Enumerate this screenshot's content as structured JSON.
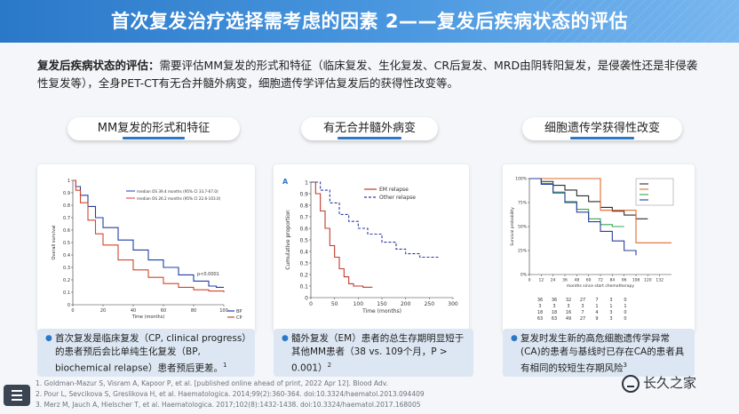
{
  "slide": {
    "title": "首次复发治疗选择需考虑的因素 2——复发后疾病状态的评估",
    "intro_bold": "复发后疾病状态的评估：",
    "intro_text": "需要评估MM复发的形式和特征（临床复发、生化复发、CR后复发、MRD由阴转阳复发，是侵袭性还是非侵袭性复发等），全身PET-CT有无合并髓外病变，细胞遗传学评估复发后的获得性改变等。"
  },
  "sections": [
    {
      "label": "MM复发的形式和特征"
    },
    {
      "label": "有无合并髓外病变"
    },
    {
      "label": "细胞遗传学获得性改变"
    }
  ],
  "notes": [
    {
      "text": "首次复发是临床复发（CP, clinical progress）的患者预后会比单纯生化复发（BP, biochemical relapse）患者预后更差。",
      "sup": "1"
    },
    {
      "text": "髓外复发（EM）患者的总生存期明显短于其他MM患者（38 vs. 109个月，P > 0.001）",
      "sup": "2"
    },
    {
      "text": "复发时发生新的高危细胞遗传学异常(CA)的患者与基线时已存在CA的患者具有相同的较短生存期风险",
      "sup": "3"
    }
  ],
  "refs": [
    "1.   Goldman-Mazur S, Visram A, Kapoor P, et al. [published online ahead of print, 2022 Apr 12]. Blood Adv.",
    "2.   Pour L, Sevcikova S, Greslikova H, et al. Haematologica. 2014;99(2):360-364. doi:10.3324/haematol.2013.094409",
    "3.   Merz M, Jauch A, Hielscher T, et al. Haematologica. 2017;102(8):1432-1438. doi:10.3324/haematol.2017.168005"
  ],
  "watermark": "长久之家",
  "chart_data": [
    {
      "type": "line",
      "title": "",
      "xlabel": "Time (months)",
      "ylabel": "Overall survival",
      "xlim": [
        0,
        100
      ],
      "ylim": [
        0,
        1
      ],
      "x_ticks": [
        0,
        20,
        40,
        60,
        80,
        100
      ],
      "y_ticks": [
        0,
        0.1,
        0.2,
        0.3,
        0.4,
        0.5,
        0.6,
        0.7,
        0.8,
        0.9,
        1.0
      ],
      "legend": [
        "BP",
        "CP"
      ],
      "annotations": [
        "median OS 39.4 months (95% CI 33.7-67.0)",
        "median OS 26.2 months (95% CI 22.6-103.0)",
        "p<0.0001"
      ],
      "series": [
        {
          "name": "BP",
          "color": "#1f3fa6",
          "x": [
            0,
            2,
            5,
            10,
            15,
            20,
            30,
            40,
            50,
            60,
            70,
            80,
            90,
            95,
            100
          ],
          "y": [
            1.0,
            0.95,
            0.88,
            0.79,
            0.7,
            0.62,
            0.52,
            0.44,
            0.36,
            0.3,
            0.24,
            0.19,
            0.15,
            0.14,
            0.14
          ]
        },
        {
          "name": "CP",
          "color": "#d0462a",
          "x": [
            0,
            2,
            5,
            10,
            15,
            20,
            30,
            40,
            50,
            60,
            70,
            80,
            90,
            95,
            100
          ],
          "y": [
            1.0,
            0.92,
            0.82,
            0.68,
            0.57,
            0.48,
            0.36,
            0.28,
            0.22,
            0.17,
            0.14,
            0.12,
            0.11,
            0.11,
            0.1
          ]
        }
      ]
    },
    {
      "type": "line",
      "panel_label": "A",
      "xlabel": "Time (months)",
      "ylabel": "Cumulative proportion",
      "xlim": [
        0,
        300
      ],
      "ylim": [
        0,
        1
      ],
      "x_ticks": [
        0,
        50,
        100,
        150,
        200,
        250,
        300
      ],
      "y_ticks": [
        0.0,
        0.1,
        0.2,
        0.3,
        0.4,
        0.5,
        0.6,
        0.7,
        0.8,
        0.9,
        1.0
      ],
      "legend": [
        "EM relapse",
        "Other relapse"
      ],
      "series": [
        {
          "name": "EM relapse",
          "color": "#c0392b",
          "dash": false,
          "x": [
            0,
            10,
            20,
            30,
            40,
            50,
            60,
            70,
            80,
            90,
            110,
            130
          ],
          "y": [
            1.0,
            0.9,
            0.75,
            0.6,
            0.45,
            0.35,
            0.25,
            0.18,
            0.12,
            0.1,
            0.09,
            0.09
          ]
        },
        {
          "name": "Other relapse",
          "color": "#2b3c9e",
          "dash": true,
          "x": [
            0,
            20,
            40,
            60,
            80,
            100,
            120,
            150,
            180,
            200,
            230,
            270
          ],
          "y": [
            1.0,
            0.93,
            0.82,
            0.72,
            0.66,
            0.6,
            0.55,
            0.48,
            0.42,
            0.38,
            0.35,
            0.35
          ]
        }
      ]
    },
    {
      "type": "line",
      "xlabel": "months since start chemotherapy",
      "ylabel": "Survival probability",
      "xlim": [
        0,
        144
      ],
      "ylim": [
        0,
        100
      ],
      "x_ticks": [
        0,
        12,
        24,
        36,
        48,
        60,
        72,
        84,
        96,
        108,
        120,
        132
      ],
      "y_ticks": [
        0,
        25,
        50,
        75,
        100
      ],
      "y_tick_labels": [
        "0%",
        "25%",
        "50%",
        "75%",
        "100%"
      ],
      "at_risk": [
        [
          "36",
          "36",
          "32",
          "27",
          "7",
          "3",
          "0"
        ],
        [
          "3",
          "3",
          "3",
          "3",
          "1",
          "1",
          "1"
        ],
        [
          "18",
          "18",
          "16",
          "7",
          "4",
          "3",
          "0"
        ],
        [
          "63",
          "63",
          "49",
          "27",
          "9",
          "3",
          "0"
        ]
      ],
      "series": [
        {
          "color": "#2c2c2c",
          "x": [
            0,
            12,
            24,
            36,
            48,
            60,
            72,
            84,
            96,
            108,
            120
          ],
          "y": [
            100,
            97,
            93,
            88,
            82,
            76,
            70,
            66,
            62,
            58,
            58
          ]
        },
        {
          "color": "#e26a2c",
          "x": [
            0,
            24,
            48,
            72,
            96,
            108,
            144
          ],
          "y": [
            100,
            100,
            100,
            67,
            67,
            33,
            33
          ]
        },
        {
          "color": "#2fa84f",
          "x": [
            0,
            12,
            24,
            36,
            48,
            60,
            72,
            84,
            96
          ],
          "y": [
            100,
            95,
            86,
            76,
            68,
            58,
            52,
            50,
            50
          ]
        },
        {
          "color": "#2b3c9e",
          "x": [
            0,
            12,
            24,
            36,
            48,
            60,
            72,
            84,
            96,
            108
          ],
          "y": [
            100,
            94,
            85,
            75,
            65,
            55,
            45,
            35,
            25,
            20
          ]
        }
      ]
    }
  ]
}
